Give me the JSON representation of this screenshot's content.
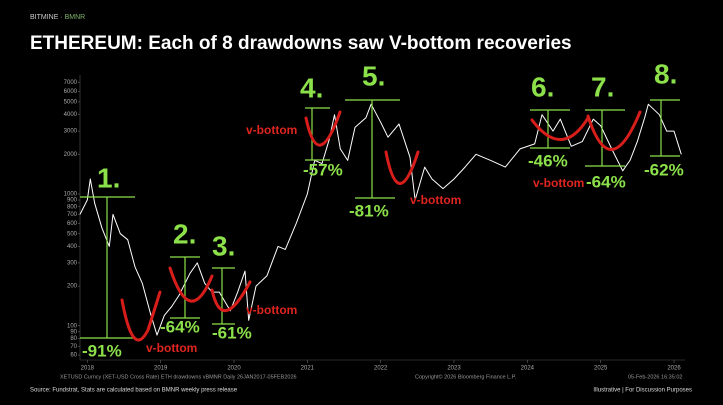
{
  "header": {
    "brand": "BITMINE",
    "ticker": "· BMNR"
  },
  "chart_data": {
    "type": "line",
    "title": "ETHEREUM: Each of 8 drawdowns saw V-bottom recoveries",
    "color": "#ffffff",
    "log_y": true,
    "x": [
      2017.9,
      2018.0,
      2018.04,
      2018.1,
      2018.2,
      2018.3,
      2018.35,
      2018.45,
      2018.55,
      2018.65,
      2018.75,
      2018.85,
      2018.95,
      2019.05,
      2019.15,
      2019.25,
      2019.4,
      2019.5,
      2019.6,
      2019.7,
      2019.8,
      2019.95,
      2020.05,
      2020.15,
      2020.2,
      2020.3,
      2020.45,
      2020.6,
      2020.7,
      2020.85,
      2021.0,
      2021.1,
      2021.2,
      2021.3,
      2021.37,
      2021.45,
      2021.55,
      2021.65,
      2021.8,
      2021.87,
      2022.0,
      2022.1,
      2022.25,
      2022.4,
      2022.47,
      2022.6,
      2022.7,
      2022.85,
      2023.0,
      2023.15,
      2023.3,
      2023.5,
      2023.7,
      2023.9,
      2024.1,
      2024.2,
      2024.35,
      2024.45,
      2024.6,
      2024.75,
      2024.9,
      2025.0,
      2025.15,
      2025.3,
      2025.4,
      2025.5,
      2025.6,
      2025.65,
      2025.8,
      2025.9,
      2026.0,
      2026.1
    ],
    "values": [
      700,
      900,
      1300,
      850,
      550,
      400,
      700,
      500,
      450,
      280,
      210,
      130,
      85,
      120,
      140,
      170,
      250,
      300,
      210,
      180,
      180,
      130,
      180,
      260,
      110,
      200,
      240,
      400,
      380,
      600,
      1000,
      1800,
      1700,
      2600,
      4000,
      2200,
      1800,
      3200,
      3800,
      4800,
      3500,
      2700,
      3400,
      1900,
      900,
      1600,
      1300,
      1100,
      1300,
      1600,
      2000,
      1800,
      1600,
      2200,
      2400,
      4000,
      3000,
      3700,
      2300,
      2500,
      3700,
      3300,
      2200,
      1500,
      1800,
      2500,
      3800,
      4800,
      4000,
      3000,
      3000,
      2000
    ],
    "xlim": [
      2017.9,
      2026.15
    ],
    "xticks": [
      2018,
      2019,
      2020,
      2021,
      2022,
      2023,
      2024,
      2025,
      2026
    ],
    "ylim": [
      55,
      8000
    ],
    "yticks": [
      60,
      70,
      80,
      90,
      100,
      200,
      300,
      400,
      500,
      600,
      700,
      800,
      900,
      1000,
      2000,
      3000,
      4000,
      5000,
      6000,
      7000
    ],
    "drawdown_numbers": [
      "1.",
      "2.",
      "3.",
      "4.",
      "5.",
      "6.",
      "7.",
      "8."
    ],
    "drawdown_pcts": [
      "-91%",
      "-64%",
      "-61%",
      "-57%",
      "-81%",
      "-46%",
      "-64%",
      "-62%"
    ],
    "v_bottom_labels": [
      "v-bottom",
      "v-bottom",
      "v-bottom",
      "v-bottom",
      "v-bottom"
    ],
    "caption": [
      "XETUSD Curncy (XET-USD Cross Rate) ETH drawdowns vBMNR Daily 26JAN2017-05FEB2026",
      "Copyright© 2026 Bloomberg Finance L.P.",
      "05-Feb-2026 16:35:02"
    ]
  },
  "footer": {
    "source": "Source: Fundstrat, Stats are calculated based on BMNR weekly press release",
    "disclaimer": "Illustrative | For Discussion Purposes"
  }
}
